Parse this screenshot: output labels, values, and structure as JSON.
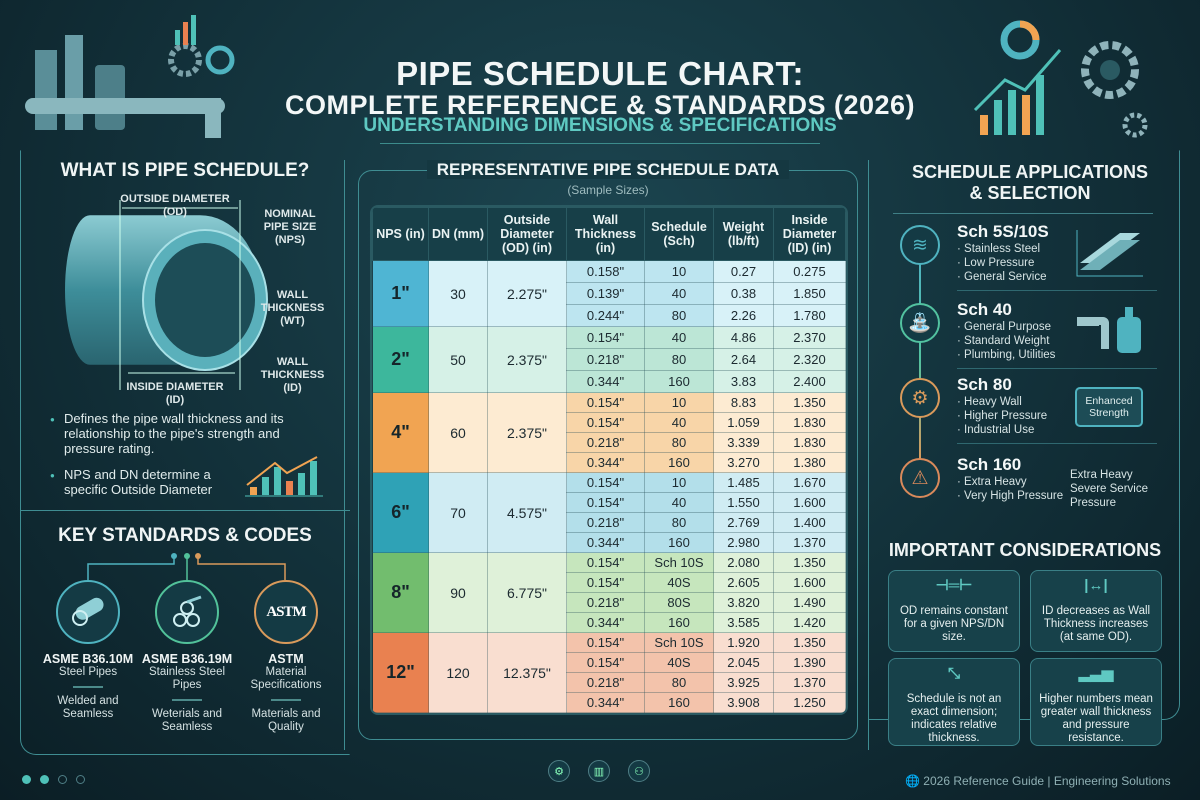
{
  "header": {
    "title_line1": "PIPE SCHEDULE CHART:",
    "title_line2": "COMPLETE REFERENCE & STANDARDS (2026)",
    "subtitle": "UNDERSTANDING DIMENSIONS & SPECIFICATIONS"
  },
  "what_is": {
    "heading": "WHAT IS PIPE SCHEDULE?",
    "labels": {
      "od": "OUTSIDE DIAMETER",
      "od2": "(OD)",
      "nps": "NOMINAL",
      "nps2": "PIPE SIZE",
      "nps3": "(NPS)",
      "wt": "WALL",
      "wt2": "THICKNESS",
      "wt3": "(WT)",
      "wid": "WALL",
      "wid2": "THICKNESS",
      "wid3": "(ID)",
      "id": "INSIDE DIAMETER",
      "id2": "(ID)"
    },
    "bullets": [
      "Defines the pipe wall thickness and its relationship to the pipe's strength and pressure rating.",
      "NPS and DN determine a specific Outside Diameter"
    ]
  },
  "standards": {
    "heading": "KEY STANDARDS & CODES",
    "items": [
      {
        "name": "ASME B36.10M",
        "desc": "Steel Pipes",
        "note": "Welded and Seamless",
        "icon": "pipe-icon",
        "color": "#4fb3c0"
      },
      {
        "name": "ASME B36.19M",
        "desc": "Stainless Steel Pipes",
        "note": "Weterials and Seamless",
        "icon": "pipes-bundle-icon",
        "color": "#52c29a"
      },
      {
        "name": "ASTM",
        "desc": "Material Specifications",
        "note": "Materials and Quality",
        "icon": "astm-logo",
        "color": "#d99a5b",
        "logo_text": "ASTM"
      }
    ]
  },
  "table": {
    "heading": "REPRESENTATIVE PIPE SCHEDULE DATA",
    "subheading": "(Sample Sizes)",
    "columns": [
      "NPS (in)",
      "DN (mm)",
      "Outside Diameter (OD) (in)",
      "Wall Thickness (in)",
      "Schedule (Sch)",
      "Weight (lb/ft)",
      "Inside Diameter (ID) (in)"
    ],
    "groups": [
      {
        "nps": "1\"",
        "dn": "30",
        "od": "2.275\"",
        "color": "#4fb5d3",
        "light": "#d8f2f8",
        "mid": "#bde5f0",
        "rows": [
          [
            "0.158\"",
            "10",
            "0.27",
            "0.275"
          ],
          [
            "0.139\"",
            "40",
            "0.38",
            "1.850"
          ],
          [
            "0.244\"",
            "80",
            "2.26",
            "1.780"
          ]
        ]
      },
      {
        "nps": "2\"",
        "dn": "50",
        "od": "2.375\"",
        "color": "#3db79c",
        "light": "#d6f1e7",
        "mid": "#bce6d6",
        "rows": [
          [
            "0.154\"",
            "40",
            "4.86",
            "2.370"
          ],
          [
            "0.218\"",
            "80",
            "2.64",
            "2.320"
          ],
          [
            "0.344\"",
            "160",
            "3.83",
            "2.400"
          ]
        ]
      },
      {
        "nps": "4\"",
        "dn": "60",
        "od": "2.375\"",
        "color": "#f1a452",
        "light": "#fdebd2",
        "mid": "#f8d5a8",
        "rows": [
          [
            "0.154\"",
            "10",
            "8.83",
            "1.350"
          ],
          [
            "0.154\"",
            "40",
            "1.059",
            "1.830"
          ],
          [
            "0.218\"",
            "80",
            "3.339",
            "1.830"
          ],
          [
            "0.344\"",
            "160",
            "3.270",
            "1.380"
          ]
        ]
      },
      {
        "nps": "6\"",
        "dn": "70",
        "od": "4.575\"",
        "color": "#2fa2b6",
        "light": "#d0ecf3",
        "mid": "#b3dfea",
        "rows": [
          [
            "0.154\"",
            "10",
            "1.485",
            "1.670"
          ],
          [
            "0.154\"",
            "40",
            "1.550",
            "1.600"
          ],
          [
            "0.218\"",
            "80",
            "2.769",
            "1.400"
          ],
          [
            "0.344\"",
            "160",
            "2.980",
            "1.370"
          ]
        ]
      },
      {
        "nps": "8\"",
        "dn": "90",
        "od": "6.775\"",
        "color": "#72bd6e",
        "light": "#dff1d9",
        "mid": "#c6e6bd",
        "rows": [
          [
            "0.154\"",
            "Sch 10S",
            "2.080",
            "1.350"
          ],
          [
            "0.154\"",
            "40S",
            "2.605",
            "1.600"
          ],
          [
            "0.218\"",
            "80S",
            "3.820",
            "1.490"
          ],
          [
            "0.344\"",
            "160",
            "3.585",
            "1.420"
          ]
        ]
      },
      {
        "nps": "12\"",
        "dn": "120",
        "od": "12.375\"",
        "color": "#e98150",
        "light": "#f9ded0",
        "mid": "#f3c3ab",
        "rows": [
          [
            "0.154\"",
            "Sch 10S",
            "1.920",
            "1.350"
          ],
          [
            "0.154\"",
            "40S",
            "2.045",
            "1.390"
          ],
          [
            "0.218\"",
            "80",
            "3.925",
            "1.370"
          ],
          [
            "0.344\"",
            "160",
            "3.908",
            "1.250"
          ]
        ]
      }
    ]
  },
  "applications": {
    "heading1": "SCHEDULE APPLICATIONS",
    "heading2": "& SELECTION",
    "items": [
      {
        "title": "Sch 5S/10S",
        "bullets": [
          "Stainless Steel",
          "Low Pressure",
          "General Service"
        ],
        "icon": "layers-icon",
        "color": "#4fb3c0"
      },
      {
        "title": "Sch 40",
        "bullets": [
          "General Purpose",
          "Standard Weight",
          "Plumbing, Utilities"
        ],
        "icon": "faucet-icon",
        "color": "#52c2a0"
      },
      {
        "title": "Sch 80",
        "bullets": [
          "Heavy Wall",
          "Higher Pressure",
          "Industrial Use"
        ],
        "icon": "gear-icon",
        "color": "#d99a5b",
        "badge": "Enhanced Strength"
      },
      {
        "title": "Sch 160",
        "bullets": [
          "Extra Heavy",
          "Very High Pressure"
        ],
        "extra": [
          "Extra Heavy",
          "Severe Service",
          "Pressure"
        ],
        "icon": "warning-icon",
        "color": "#d98a5b"
      }
    ]
  },
  "considerations": {
    "heading": "IMPORTANT CONSIDERATIONS",
    "items": [
      {
        "text": "OD remains constant for a given NPS/DN size.",
        "icon": "pipe-segment-icon"
      },
      {
        "text": "ID decreases as Wall Thickness increases (at same OD).",
        "icon": "width-arrow-icon"
      },
      {
        "text": "Schedule is not an exact dimension; indicates relative thickness.",
        "icon": "not-equal-arrows-icon"
      },
      {
        "text": "Higher numbers mean greater wall thickness and pressure resistance.",
        "icon": "bar-growth-icon"
      }
    ]
  },
  "footer": {
    "text": "2026 Reference Guide | Engineering Solutions",
    "page_dots": 4,
    "active_dots": 2
  },
  "colors": {
    "background": "#123039",
    "accent": "#5fc9c2",
    "orange": "#e98150"
  }
}
